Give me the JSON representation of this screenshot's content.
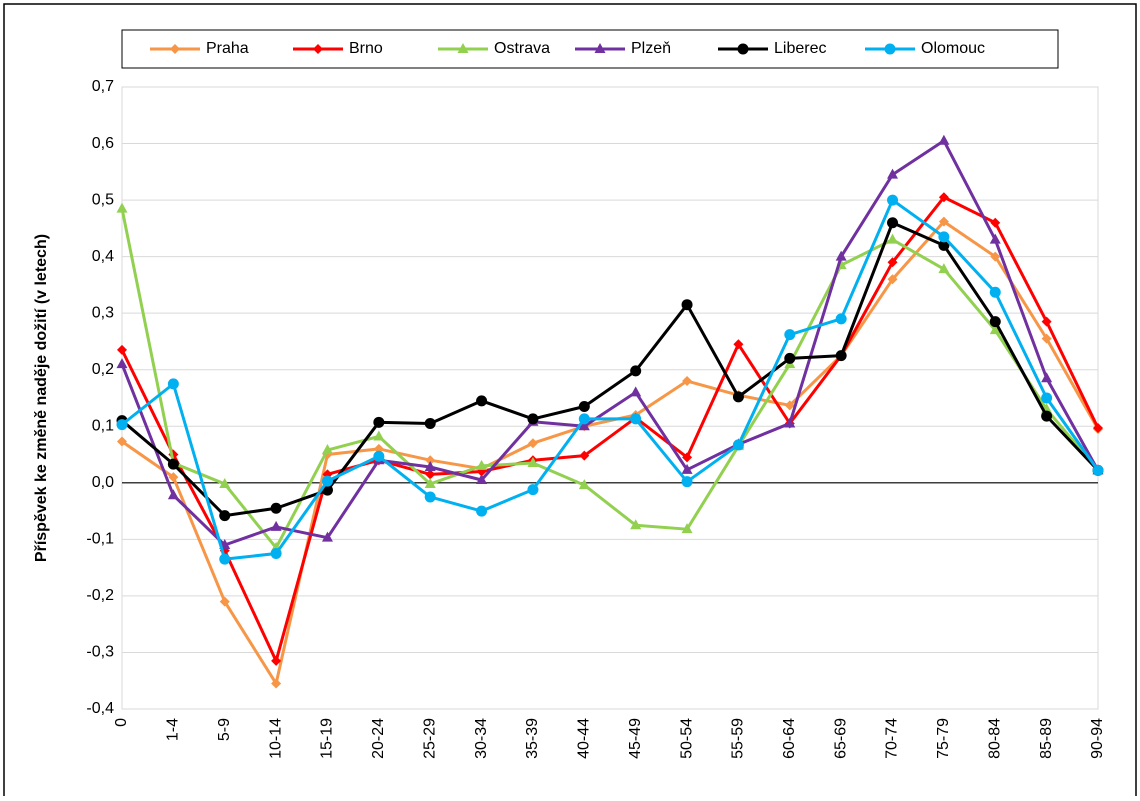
{
  "chart_data": {
    "type": "line",
    "y_label": "Příspěvek ke změně naděje dožití (v letech)",
    "categories": [
      "0",
      "1-4",
      "5-9",
      "10-14",
      "15-19",
      "20-24",
      "25-29",
      "30-34",
      "35-39",
      "40-44",
      "45-49",
      "50-54",
      "55-59",
      "60-64",
      "65-69",
      "70-74",
      "75-79",
      "80-84",
      "85-89",
      "90-94"
    ],
    "series": [
      {
        "name": "Praha",
        "color": "#f79646",
        "marker": "diamond",
        "values": [
          0.073,
          0.01,
          -0.21,
          -0.355,
          0.05,
          0.06,
          0.04,
          0.025,
          0.07,
          0.1,
          0.12,
          0.18,
          0.155,
          0.137,
          0.225,
          0.36,
          0.462,
          0.4,
          0.255,
          0.095
        ]
      },
      {
        "name": "Brno",
        "color": "#ff0000",
        "marker": "diamond",
        "values": [
          0.235,
          0.05,
          -0.12,
          -0.315,
          0.015,
          0.04,
          0.015,
          0.02,
          0.04,
          0.048,
          0.115,
          0.045,
          0.245,
          0.105,
          0.225,
          0.39,
          0.505,
          0.46,
          0.285,
          0.097
        ]
      },
      {
        "name": "Ostrava",
        "color": "#92d050",
        "marker": "triangle",
        "values": [
          0.485,
          0.035,
          -0.002,
          -0.115,
          0.058,
          0.082,
          -0.002,
          0.03,
          0.035,
          -0.004,
          -0.075,
          -0.082,
          0.065,
          0.21,
          0.385,
          0.43,
          0.378,
          0.27,
          0.13,
          0.022
        ]
      },
      {
        "name": "Plzeň",
        "color": "#7030a0",
        "marker": "triangle",
        "values": [
          0.21,
          -0.022,
          -0.11,
          -0.078,
          -0.097,
          0.04,
          0.028,
          0.005,
          0.108,
          0.1,
          0.16,
          0.023,
          0.068,
          0.105,
          0.4,
          0.545,
          0.605,
          0.43,
          0.185,
          0.022
        ]
      },
      {
        "name": "Liberec",
        "color": "#000000",
        "marker": "circle",
        "values": [
          0.11,
          0.033,
          -0.058,
          -0.045,
          -0.013,
          0.107,
          0.105,
          0.145,
          0.113,
          0.135,
          0.198,
          0.315,
          0.152,
          0.22,
          0.225,
          0.46,
          0.42,
          0.285,
          0.118,
          0.022
        ]
      },
      {
        "name": "Olomouc",
        "color": "#00b0f0",
        "marker": "circle",
        "values": [
          0.103,
          0.175,
          -0.135,
          -0.125,
          0.003,
          0.047,
          -0.025,
          -0.05,
          -0.012,
          0.113,
          0.113,
          0.002,
          0.067,
          0.262,
          0.29,
          0.5,
          0.435,
          0.337,
          0.15,
          0.022
        ]
      }
    ],
    "ylim": [
      -0.4,
      0.7
    ],
    "yticks": [
      {
        "value": -0.4,
        "label": "-0,4"
      },
      {
        "value": -0.3,
        "label": "-0,3"
      },
      {
        "value": -0.2,
        "label": "-0,2"
      },
      {
        "value": -0.1,
        "label": "-0,1"
      },
      {
        "value": 0,
        "label": "0,0"
      },
      {
        "value": 0.1,
        "label": "0,1"
      },
      {
        "value": 0.2,
        "label": "0,2"
      },
      {
        "value": 0.3,
        "label": "0,3"
      },
      {
        "value": 0.4,
        "label": "0,4"
      },
      {
        "value": 0.5,
        "label": "0,5"
      },
      {
        "value": 0.6,
        "label": "0,6"
      },
      {
        "value": 0.7,
        "label": "0,7"
      }
    ],
    "grid": true,
    "legend": "top"
  }
}
